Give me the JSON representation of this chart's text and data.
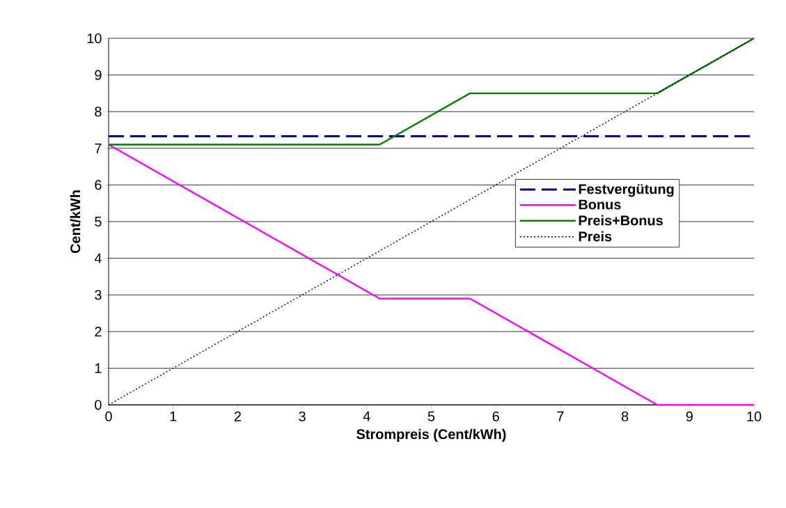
{
  "chart_data": {
    "type": "line",
    "xlabel": "Strompreis (Cent/kWh)",
    "ylabel": "Cent/kWh",
    "xlim": [
      0,
      10
    ],
    "ylim": [
      0,
      10
    ],
    "xticks": [
      0,
      1,
      2,
      3,
      4,
      5,
      6,
      7,
      8,
      9,
      10
    ],
    "yticks": [
      0,
      1,
      2,
      3,
      4,
      5,
      6,
      7,
      8,
      9,
      10
    ],
    "grid": "y",
    "legend": "right",
    "marker": "none",
    "series": [
      {
        "name": "Festvergütung",
        "color": "#000080",
        "line_style": "dashed",
        "x": [
          0,
          10
        ],
        "values": [
          7.33,
          7.33
        ]
      },
      {
        "name": "Bonus",
        "color": "#ff00ff",
        "line_style": "solid",
        "x": [
          0,
          4.2,
          5.6,
          8.5,
          10
        ],
        "values": [
          7.1,
          2.9,
          2.9,
          0,
          0
        ]
      },
      {
        "name": "Preis+Bonus",
        "color": "#008000",
        "line_style": "solid",
        "x": [
          0,
          4.2,
          5.6,
          8.5,
          10
        ],
        "values": [
          7.1,
          7.1,
          8.5,
          8.5,
          10
        ]
      },
      {
        "name": "Preis",
        "color": "#000000",
        "line_style": "dotted",
        "x": [
          0,
          10
        ],
        "values": [
          0,
          10
        ]
      }
    ]
  }
}
